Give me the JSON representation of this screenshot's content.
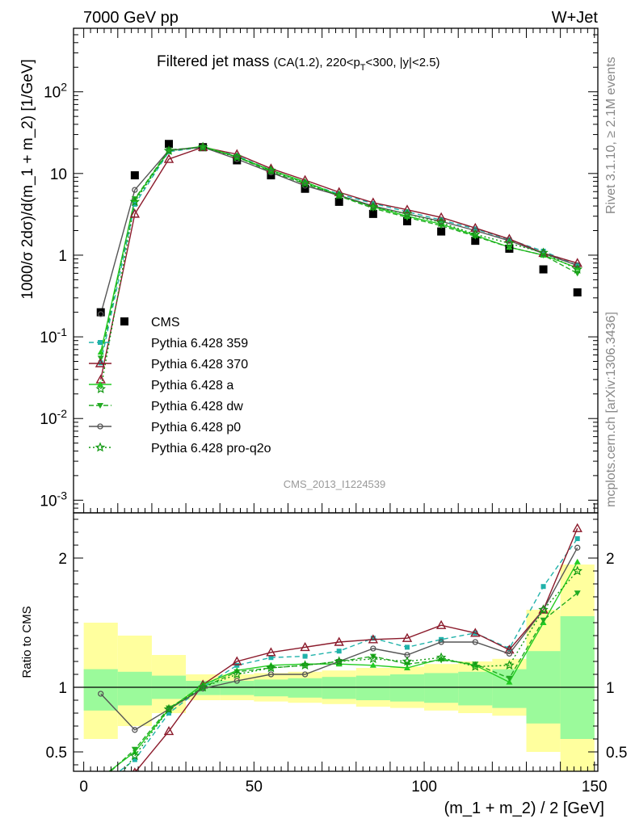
{
  "header": {
    "energy": "7000 GeV pp",
    "process": "W+Jet"
  },
  "side_labels": {
    "rivet": "Rivet 3.1.10, ≥ 2.1M events",
    "mcplots": "mcplots.cern.ch [arXiv:1306.3436]"
  },
  "chart_data": [
    {
      "type": "scatter",
      "panel": "main",
      "title_main": "Filtered jet mass",
      "title_sub": "(CA(1.2), 220<p",
      "title_sub_index": "T",
      "title_sub_tail": "<300, |y|<2.5)",
      "ylabel": "1000/σ 2dσ)/d(m_1 + m_2) [1/GeV]",
      "yscale": "log",
      "ylim": [
        0.0007,
        600
      ],
      "xlim": [
        -3,
        151
      ],
      "y_ticks": [
        {
          "base": "10",
          "exp": "-3"
        },
        {
          "base": "10",
          "exp": "-2"
        },
        {
          "base": "10",
          "exp": "-1"
        },
        {
          "text": "1"
        },
        {
          "text": "10"
        },
        {
          "base": "10",
          "exp": "2"
        }
      ],
      "watermark": "CMS_2013_I1224539",
      "legend_position": "middle-left",
      "x": [
        5,
        15,
        25,
        35,
        45,
        55,
        65,
        75,
        85,
        95,
        105,
        115,
        125,
        135,
        145
      ],
      "series": [
        {
          "name": "CMS",
          "kind": "data",
          "color": "#000000",
          "marker": "square",
          "values": [
            0.2,
            9.5,
            23,
            21,
            14.5,
            9.5,
            6.5,
            4.5,
            3.2,
            2.6,
            1.95,
            1.5,
            1.2,
            0.67,
            0.35
          ]
        },
        {
          "name": "Pythia 6.428 359",
          "kind": "mc",
          "color": "#20b2aa",
          "marker": "square-small",
          "dash": "6,4",
          "values": [
            0.048,
            4.2,
            18.5,
            21,
            16.5,
            11,
            7.8,
            5.6,
            4.3,
            3.4,
            2.7,
            2.1,
            1.55,
            1.12,
            0.75
          ]
        },
        {
          "name": "Pythia 6.428 370",
          "kind": "mc",
          "color": "#8b1a2b",
          "marker": "triangle-open",
          "dash": "",
          "values": [
            0.03,
            3.2,
            15,
            21,
            17.2,
            11.5,
            8.3,
            5.9,
            4.4,
            3.6,
            2.9,
            2.15,
            1.58,
            1.06,
            0.8
          ]
        },
        {
          "name": "Pythia 6.428 a",
          "kind": "mc",
          "color": "#22cc22",
          "marker": "triangle",
          "dash": "",
          "values": [
            0.065,
            4.8,
            19,
            21.5,
            16,
            11,
            7.9,
            5.4,
            3.9,
            3.0,
            2.4,
            1.75,
            1.25,
            1.0,
            0.7
          ]
        },
        {
          "name": "Pythia 6.428 dw",
          "kind": "mc",
          "color": "#22aa22",
          "marker": "triangle-down",
          "dash": "6,3",
          "values": [
            0.055,
            4.9,
            19.5,
            21,
            16,
            10.5,
            7.5,
            5.3,
            3.75,
            2.9,
            2.3,
            1.7,
            1.25,
            1.0,
            0.6
          ]
        },
        {
          "name": "Pythia 6.428 p0",
          "kind": "mc",
          "color": "#555555",
          "marker": "circle-open",
          "dash": "",
          "values": [
            0.19,
            6.3,
            19.2,
            21,
            15,
            10.3,
            7.1,
            5.4,
            4.0,
            3.2,
            2.6,
            2.0,
            1.5,
            1.05,
            0.75
          ]
        },
        {
          "name": "Pythia 6.428 pro-q2o",
          "kind": "mc",
          "color": "#119911",
          "marker": "star",
          "dash": "2,3",
          "values": [
            0.023,
            4.5,
            19,
            21,
            15.8,
            10.9,
            7.6,
            5.4,
            3.9,
            3.2,
            2.5,
            1.8,
            1.4,
            1.07,
            0.67
          ]
        }
      ]
    },
    {
      "type": "line",
      "panel": "ratio",
      "ylabel": "Ratio to CMS",
      "xlabel": "(m_1 + m_2) / 2 [GeV]",
      "ylim": [
        0.35,
        2.35
      ],
      "xlim": [
        -3,
        151
      ],
      "x_ticks": [
        "0",
        "50",
        "100",
        "150"
      ],
      "y_ticks": [
        "0.5",
        "1",
        "2"
      ],
      "band_edges": [
        0,
        10,
        20,
        30,
        40,
        50,
        60,
        70,
        80,
        90,
        100,
        110,
        120,
        130,
        140,
        150
      ],
      "band_inner": [
        [
          0.82,
          1.14
        ],
        [
          0.86,
          1.12
        ],
        [
          0.91,
          1.09
        ],
        [
          0.94,
          1.05
        ],
        [
          0.94,
          1.05
        ],
        [
          0.93,
          1.06
        ],
        [
          0.92,
          1.07
        ],
        [
          0.91,
          1.08
        ],
        [
          0.9,
          1.09
        ],
        [
          0.89,
          1.1
        ],
        [
          0.88,
          1.11
        ],
        [
          0.86,
          1.12
        ],
        [
          0.84,
          1.14
        ],
        [
          0.72,
          1.28
        ],
        [
          0.6,
          1.55
        ]
      ],
      "band_outer": [
        [
          0.6,
          1.5
        ],
        [
          0.7,
          1.4
        ],
        [
          0.8,
          1.25
        ],
        [
          0.9,
          1.1
        ],
        [
          0.9,
          1.1
        ],
        [
          0.89,
          1.11
        ],
        [
          0.88,
          1.12
        ],
        [
          0.87,
          1.13
        ],
        [
          0.85,
          1.15
        ],
        [
          0.84,
          1.16
        ],
        [
          0.82,
          1.18
        ],
        [
          0.8,
          1.2
        ],
        [
          0.78,
          1.22
        ],
        [
          0.5,
          1.6
        ],
        [
          0.35,
          1.95
        ]
      ],
      "band_colors": {
        "inner": "#9bfa9b",
        "outer": "#ffff9e"
      },
      "x": [
        5,
        15,
        25,
        35,
        45,
        55,
        65,
        75,
        85,
        95,
        105,
        115,
        125,
        135,
        145
      ],
      "series": [
        {
          "name": "Pythia 6.428 359",
          "values": [
            0.24,
            0.44,
            0.8,
            1.0,
            1.17,
            1.23,
            1.24,
            1.28,
            1.38,
            1.31,
            1.37,
            1.42,
            1.3,
            1.78,
            2.15
          ]
        },
        {
          "name": "Pythia 6.428 370",
          "values": [
            0.15,
            0.34,
            0.66,
            1.02,
            1.2,
            1.27,
            1.31,
            1.35,
            1.37,
            1.38,
            1.48,
            1.42,
            1.29,
            1.6,
            2.23
          ]
        },
        {
          "name": "Pythia 6.428 a",
          "values": [
            0.3,
            0.5,
            0.83,
            1.02,
            1.13,
            1.17,
            1.18,
            1.18,
            1.17,
            1.15,
            1.22,
            1.17,
            1.04,
            1.5,
            1.97
          ]
        },
        {
          "name": "Pythia 6.428 dw",
          "values": [
            0.28,
            0.52,
            0.84,
            1.0,
            1.12,
            1.15,
            1.17,
            1.2,
            1.24,
            1.18,
            1.21,
            1.18,
            1.07,
            1.52,
            1.73
          ]
        },
        {
          "name": "Pythia 6.428 p0",
          "values": [
            0.95,
            0.67,
            0.83,
            0.99,
            1.05,
            1.1,
            1.1,
            1.2,
            1.3,
            1.25,
            1.35,
            1.35,
            1.26,
            1.6,
            2.08
          ]
        },
        {
          "name": "Pythia 6.428 pro-q2o",
          "values": [
            0.12,
            0.47,
            0.83,
            1.0,
            1.1,
            1.15,
            1.17,
            1.2,
            1.22,
            1.2,
            1.23,
            1.16,
            1.17,
            1.6,
            1.9
          ]
        }
      ]
    }
  ]
}
